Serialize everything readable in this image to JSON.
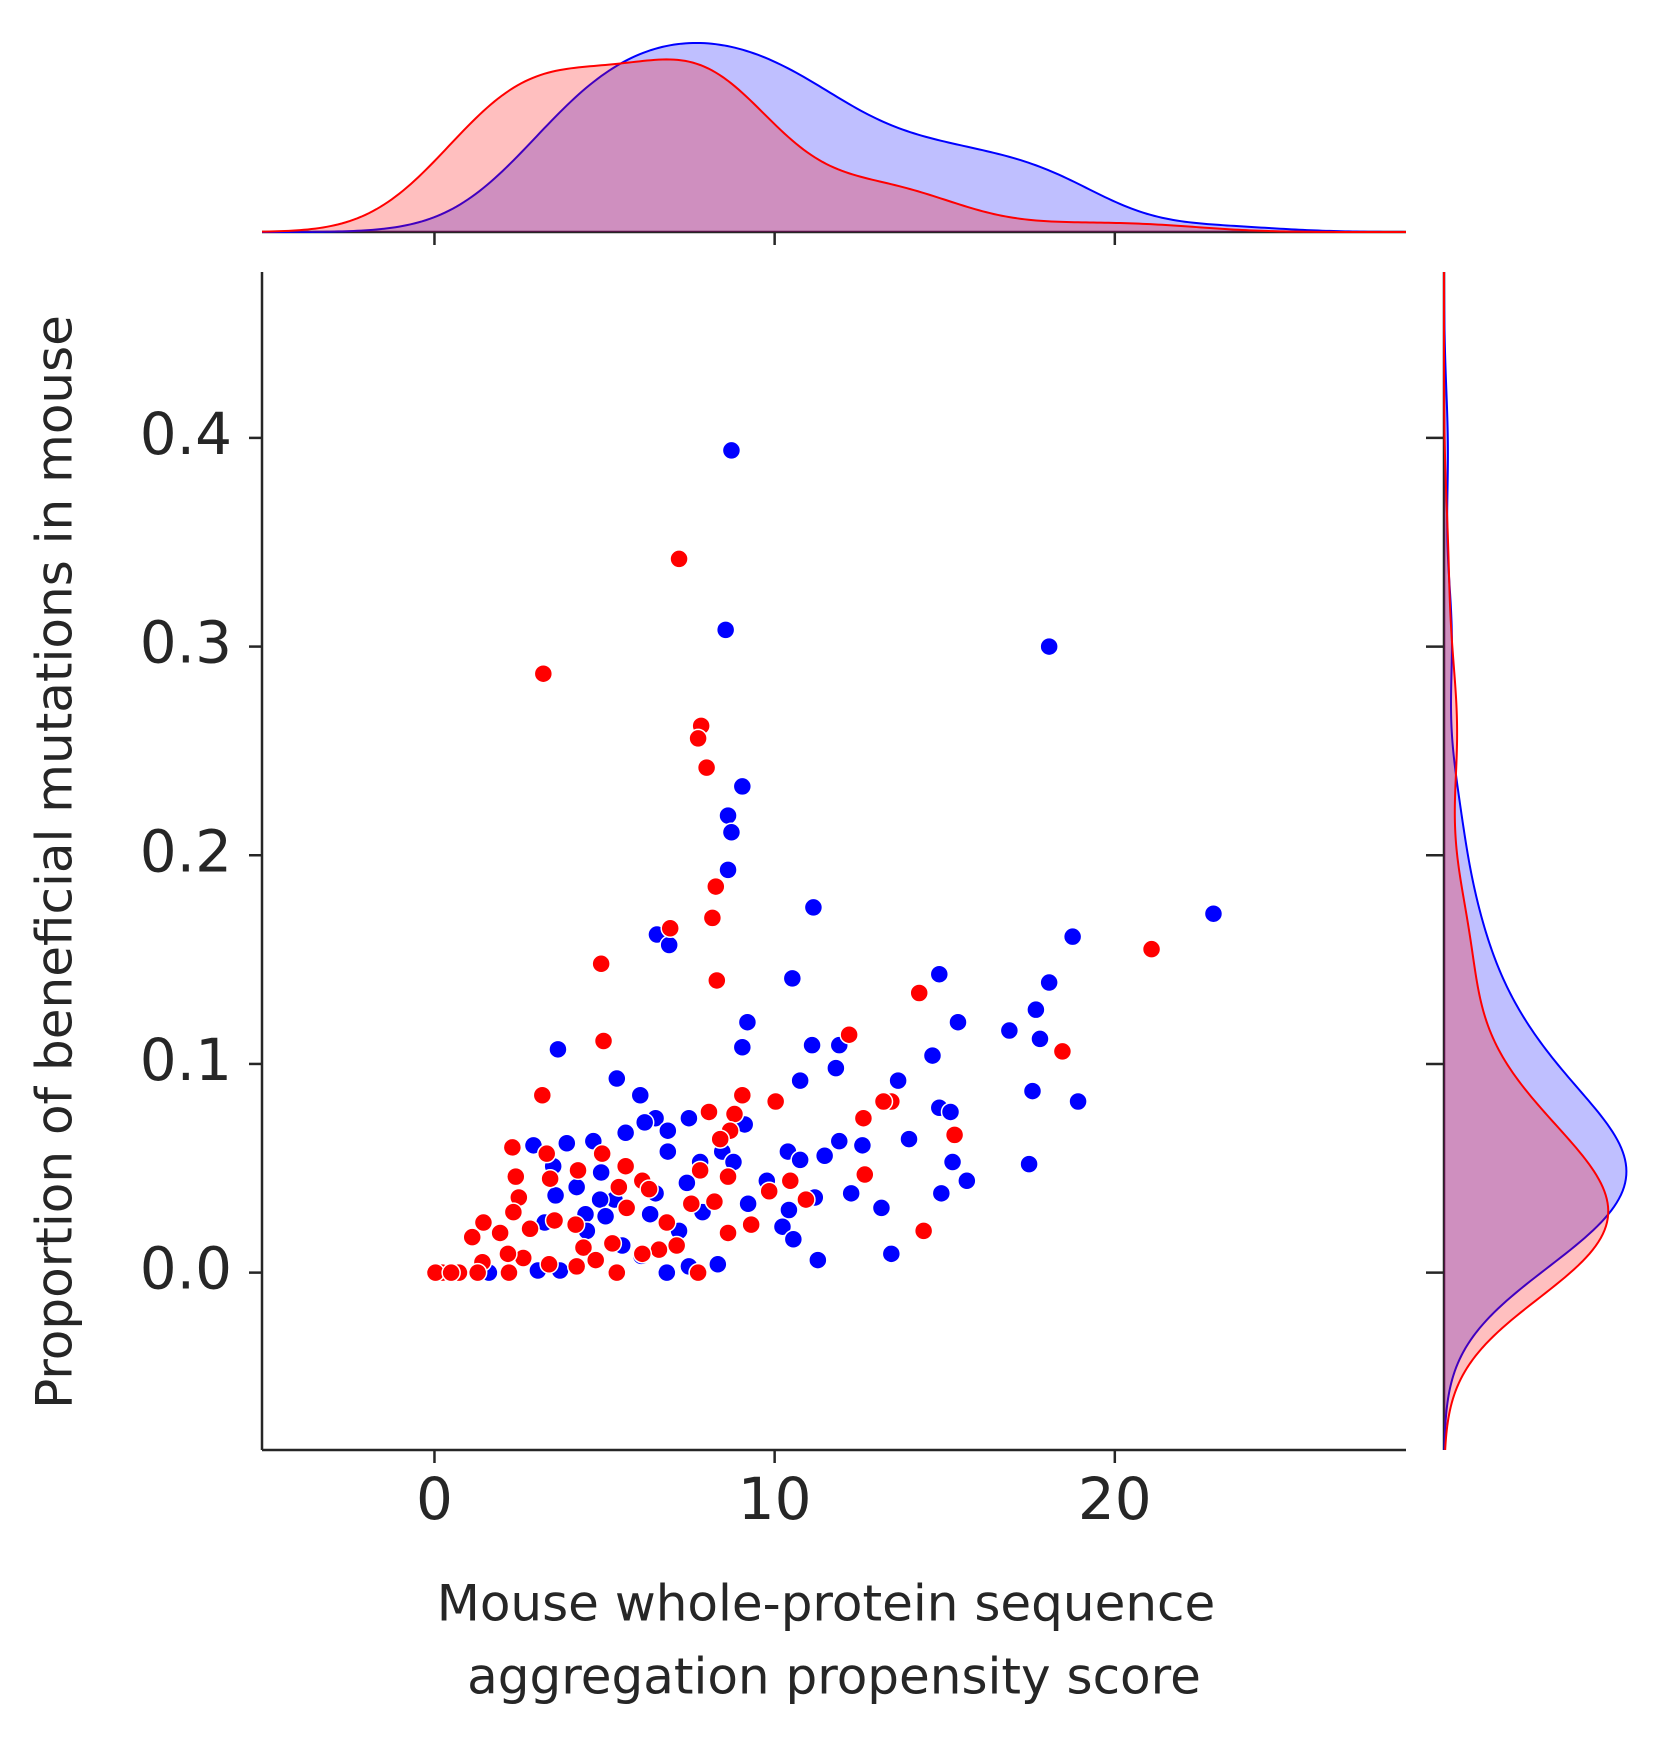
{
  "chart_data": {
    "type": "scatter",
    "xlabel": [
      "Mouse whole-protein sequence",
      "aggregation propensity score"
    ],
    "ylabel": "Proportion of beneficial mutations in mouse",
    "xlim": [
      -5.07,
      28.56
    ],
    "ylim": [
      -0.085,
      0.4795
    ],
    "xticks": [
      0,
      10,
      20
    ],
    "yticks": [
      {
        "value": 0,
        "label": "0.0"
      },
      0.1,
      0.2,
      0.3,
      0.4
    ],
    "marginals": true,
    "series": [
      {
        "color": "#0000ff",
        "x": [
          8.73,
          8.56,
          18.07,
          9.05,
          8.63,
          8.73,
          8.63,
          11.14,
          22.9,
          18.76,
          6.54,
          6.9,
          14.84,
          10.52,
          18.07,
          17.68,
          15.39,
          9.2,
          16.9,
          17.8,
          11.1,
          11.9,
          9.05,
          3.63,
          14.64,
          11.8,
          5.36,
          10.75,
          13.63,
          17.58,
          6.05,
          18.92,
          14.84,
          15.17,
          7.48,
          6.5,
          6.18,
          6.86,
          5.62,
          9.12,
          13.95,
          4.67,
          11.9,
          2.91,
          3.89,
          12.58,
          10.39,
          6.86,
          8.46,
          11.47,
          10.75,
          15.23,
          8.79,
          17.48,
          7.81,
          3.49,
          4.9,
          15.65,
          9.77,
          6.5,
          7.42,
          12.25,
          14.9,
          3.56,
          4.18,
          11.18,
          9.22,
          13.14,
          5.29,
          4.87,
          10.42,
          7.88,
          6.34,
          4.44,
          3.24,
          5.03,
          10.23,
          7.19,
          4.48,
          10.55,
          5.52,
          13.43,
          11.27,
          6.08,
          8.33,
          7.48,
          6.83,
          3.04,
          3.69,
          1.6
        ],
        "values": [
          0.394,
          0.308,
          0.3,
          0.233,
          0.219,
          0.211,
          0.193,
          0.175,
          0.172,
          0.161,
          0.162,
          0.157,
          0.143,
          0.141,
          0.139,
          0.126,
          0.12,
          0.12,
          0.116,
          0.112,
          0.109,
          0.109,
          0.108,
          0.107,
          0.104,
          0.098,
          0.093,
          0.092,
          0.092,
          0.087,
          0.085,
          0.082,
          0.079,
          0.077,
          0.074,
          0.074,
          0.072,
          0.068,
          0.067,
          0.071,
          0.064,
          0.063,
          0.063,
          0.061,
          0.062,
          0.061,
          0.058,
          0.058,
          0.058,
          0.056,
          0.054,
          0.053,
          0.053,
          0.052,
          0.053,
          0.051,
          0.048,
          0.044,
          0.044,
          0.038,
          0.043,
          0.038,
          0.038,
          0.037,
          0.041,
          0.036,
          0.033,
          0.031,
          0.035,
          0.035,
          0.03,
          0.029,
          0.028,
          0.028,
          0.024,
          0.027,
          0.022,
          0.02,
          0.02,
          0.016,
          0.013,
          0.009,
          0.006,
          0.008,
          0.004,
          0.003,
          0.0,
          0.001,
          0.001,
          0.0
        ]
      },
      {
        "color": "#ff0000",
        "x": [
          7.19,
          3.2,
          7.84,
          7.75,
          8.0,
          8.27,
          8.17,
          6.93,
          21.08,
          4.9,
          8.3,
          14.25,
          12.19,
          4.97,
          18.46,
          3.17,
          10.03,
          13.43,
          13.2,
          9.05,
          12.61,
          8.82,
          8.07,
          8.69,
          8.4,
          15.29,
          2.29,
          3.3,
          4.93,
          4.22,
          7.81,
          5.62,
          2.39,
          12.65,
          8.63,
          10.46,
          3.4,
          6.11,
          5.42,
          6.31,
          9.84,
          10.92,
          2.48,
          7.55,
          8.23,
          9.31,
          5.65,
          2.32,
          1.44,
          3.53,
          4.15,
          8.63,
          14.38,
          2.81,
          1.93,
          1.11,
          6.83,
          6.6,
          7.12,
          5.23,
          4.38,
          4.74,
          3.37,
          2.61,
          1.41,
          2.16,
          6.11,
          7.75,
          5.36,
          4.18,
          2.19,
          1.27,
          0.72,
          0.23,
          0.03,
          0.49
        ],
        "values": [
          0.342,
          0.287,
          0.262,
          0.256,
          0.242,
          0.185,
          0.17,
          0.165,
          0.155,
          0.148,
          0.14,
          0.134,
          0.114,
          0.111,
          0.106,
          0.085,
          0.082,
          0.082,
          0.082,
          0.085,
          0.074,
          0.076,
          0.077,
          0.068,
          0.064,
          0.066,
          0.06,
          0.057,
          0.057,
          0.049,
          0.049,
          0.051,
          0.046,
          0.047,
          0.046,
          0.044,
          0.045,
          0.044,
          0.041,
          0.04,
          0.039,
          0.035,
          0.036,
          0.033,
          0.034,
          0.023,
          0.031,
          0.029,
          0.024,
          0.025,
          0.023,
          0.019,
          0.02,
          0.021,
          0.019,
          0.017,
          0.024,
          0.011,
          0.013,
          0.014,
          0.012,
          0.006,
          0.004,
          0.007,
          0.005,
          0.009,
          0.009,
          0.0,
          0.0,
          0.003,
          0.0,
          0.0,
          0.0,
          0.0,
          0.0,
          0.0
        ]
      }
    ]
  }
}
